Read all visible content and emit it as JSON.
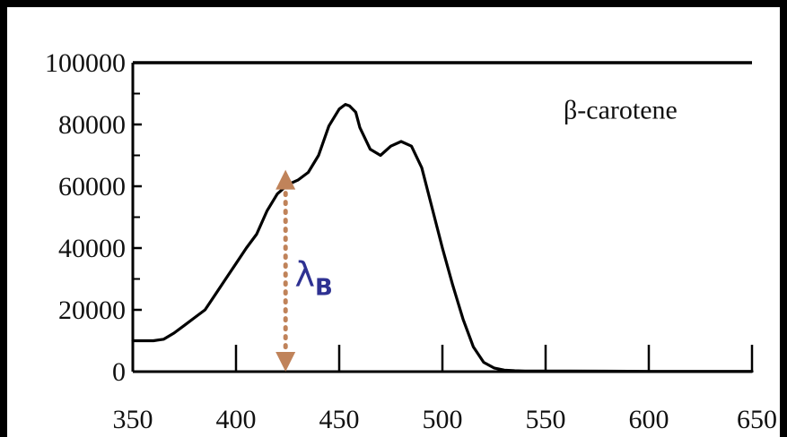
{
  "chart_data": {
    "type": "line",
    "title": "",
    "xlabel": "",
    "ylabel": "",
    "xlim": [
      350,
      650
    ],
    "ylim": [
      0,
      100000
    ],
    "x_ticks": [
      "350",
      "400",
      "450",
      "500",
      "550",
      "600",
      "650"
    ],
    "y_ticks": [
      "0",
      "20000",
      "40000",
      "60000",
      "80000",
      "100000"
    ],
    "grid": false,
    "series": [
      {
        "name": "",
        "x": [
          350,
          355,
          360,
          365,
          370,
          375,
          380,
          385,
          390,
          395,
          400,
          405,
          410,
          415,
          420,
          425,
          430,
          435,
          440,
          445,
          450,
          453,
          455,
          458,
          460,
          465,
          470,
          475,
          480,
          485,
          490,
          495,
          500,
          505,
          510,
          515,
          520,
          525,
          530,
          535,
          540,
          550,
          560,
          580,
          600,
          620,
          650
        ],
        "y": [
          10000,
          10000,
          10000,
          10500,
          12500,
          15000,
          17500,
          20000,
          25000,
          30000,
          35000,
          40000,
          44500,
          52000,
          57500,
          60500,
          62000,
          64500,
          70000,
          79500,
          85000,
          86500,
          86000,
          84000,
          79000,
          72000,
          70000,
          73000,
          74500,
          73000,
          66000,
          53000,
          40000,
          28000,
          17000,
          8000,
          3000,
          1200,
          500,
          300,
          200,
          200,
          200,
          150,
          100,
          100,
          100
        ],
        "color": "#000000"
      }
    ],
    "annotations": [
      {
        "text": "β-carotene",
        "x": 560,
        "y": 68000
      },
      {
        "text": "λ",
        "subscript": "B",
        "color": "#2e3192",
        "x": 425,
        "y": 30000
      },
      {
        "type": "double-arrow",
        "color": "#c0835a",
        "x": 424,
        "y_from": 0,
        "y_to": 63000
      }
    ]
  }
}
